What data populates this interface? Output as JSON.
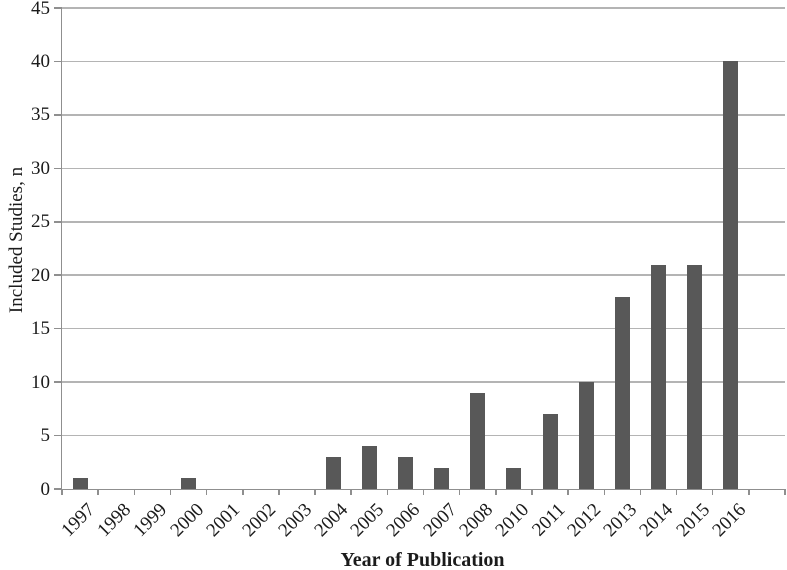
{
  "chart_data": {
    "type": "bar",
    "title": "",
    "xlabel": "Year of Publication",
    "ylabel": "Included Studies, n",
    "categories": [
      "1997",
      "1998",
      "1999",
      "2000",
      "2001",
      "2002",
      "2003",
      "2004",
      "2005",
      "2006",
      "2007",
      "2008",
      "2010",
      "2011",
      "2012",
      "2013",
      "2014",
      "2015",
      "2016"
    ],
    "values": [
      1,
      0,
      0,
      1,
      0,
      0,
      0,
      3,
      4,
      3,
      2,
      9,
      2,
      7,
      10,
      18,
      21,
      21,
      40
    ],
    "ylim": [
      0,
      45
    ],
    "ytick_step": 5,
    "yticks": [
      "0",
      "5",
      "10",
      "15",
      "20",
      "25",
      "30",
      "35",
      "40",
      "45"
    ],
    "grid": "horizontal-only",
    "legend": "none",
    "colors": {
      "bar_fill": "#585858",
      "gridline": "#b4b4b4",
      "axis_line": "#8f8f8f",
      "text": "#1b1b1b"
    }
  }
}
